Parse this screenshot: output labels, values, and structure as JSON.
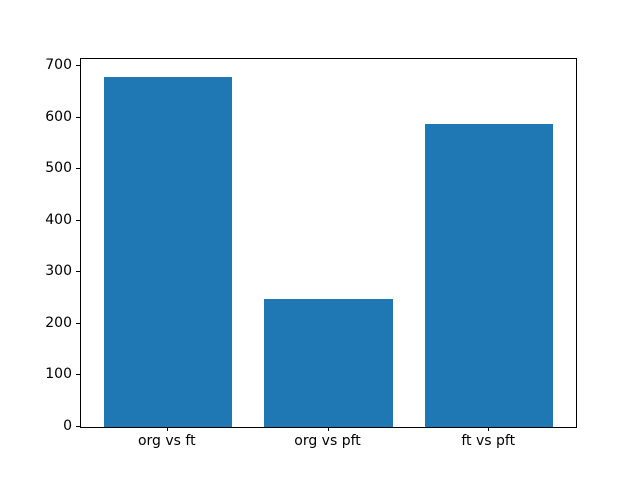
{
  "figure": {
    "background_color": "#ffffff",
    "spine_color": "#000000",
    "text_color": "#000000"
  },
  "chart_data": {
    "type": "bar",
    "title": "",
    "xlabel": "",
    "ylabel": "",
    "categories": [
      "org vs ft",
      "org vs pft",
      "ft vs pft"
    ],
    "values": [
      680,
      248,
      588
    ],
    "bar_color": "#1f77b4",
    "bar_width_fraction": 0.8,
    "ylim": [
      0,
      714
    ],
    "yticks": [
      0,
      100,
      200,
      300,
      400,
      500,
      600,
      700
    ],
    "xlim": [
      -0.54,
      2.54
    ],
    "grid": false,
    "legend": null
  }
}
